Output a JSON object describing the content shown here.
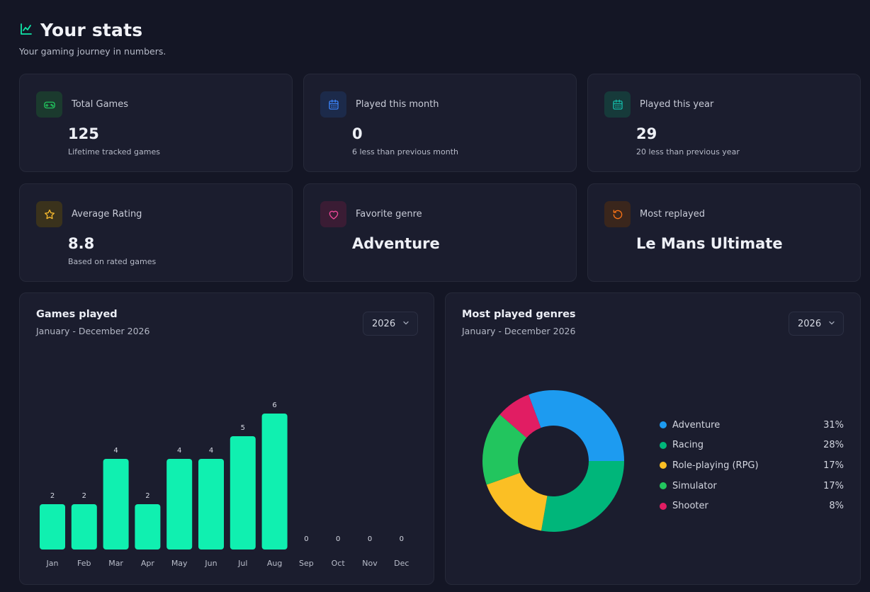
{
  "header": {
    "title": "Your stats",
    "subtitle": "Your gaming journey in numbers.",
    "icon": "chart-icon"
  },
  "stats": [
    {
      "icon": "gamepad-icon",
      "color": "#22c55e",
      "label": "Total Games",
      "value": "125",
      "note": "Lifetime tracked games"
    },
    {
      "icon": "calendar-icon",
      "color": "#3b82f6",
      "label": "Played this month",
      "value": "0",
      "note": "6 less than previous month"
    },
    {
      "icon": "calendar-icon",
      "color": "#14b8a6",
      "label": "Played this year",
      "value": "29",
      "note": "20 less than previous year"
    },
    {
      "icon": "star-icon",
      "color": "#f5b82e",
      "label": "Average Rating",
      "value": "8.8",
      "note": "Based on rated games"
    },
    {
      "icon": "heart-icon",
      "color": "#ec4899",
      "label": "Favorite genre",
      "value": "Adventure",
      "note": ""
    },
    {
      "icon": "replay-icon",
      "color": "#f97316",
      "label": "Most replayed",
      "value": "Le Mans Ultimate",
      "note": ""
    }
  ],
  "games_panel": {
    "title": "Games played",
    "range": "January - December 2026",
    "year": "2026"
  },
  "genres_panel": {
    "title": "Most played genres",
    "range": "January - December 2026",
    "year": "2026"
  },
  "chart_data": [
    {
      "type": "bar",
      "title": "Games played",
      "categories": [
        "Jan",
        "Feb",
        "Mar",
        "Apr",
        "May",
        "Jun",
        "Jul",
        "Aug",
        "Sep",
        "Oct",
        "Nov",
        "Dec"
      ],
      "values": [
        2,
        2,
        4,
        2,
        4,
        4,
        5,
        6,
        0,
        0,
        0,
        0
      ],
      "ylim": [
        0,
        6
      ],
      "grid": false,
      "color": "#10f0b0"
    },
    {
      "type": "pie",
      "title": "Most played genres",
      "donut": true,
      "legend": "right",
      "categories": [
        "Adventure",
        "Racing",
        "Role-playing (RPG)",
        "Simulator",
        "Shooter"
      ],
      "labels": [
        "31%",
        "28%",
        "17%",
        "17%",
        "8%"
      ],
      "values": [
        31,
        28,
        17,
        17,
        8
      ],
      "colors": [
        "#1d9bf0",
        "#00b67a",
        "#fbbf24",
        "#22c55e",
        "#e11d63"
      ]
    }
  ]
}
